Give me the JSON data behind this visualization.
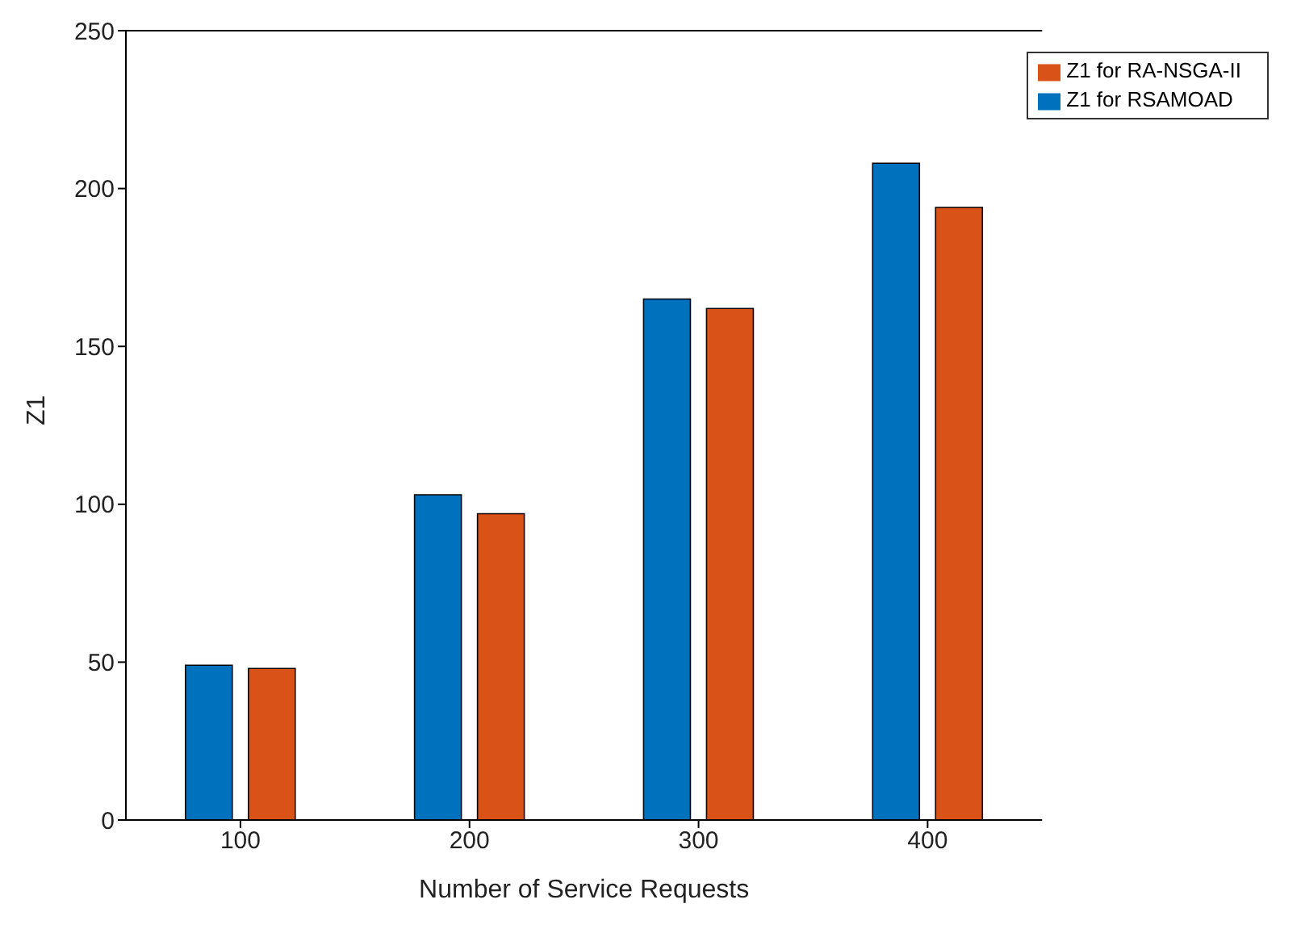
{
  "chart_data": {
    "type": "bar",
    "xlabel": "Number of Service Requests",
    "ylabel": "Z1",
    "categories": [
      "100",
      "200",
      "300",
      "400"
    ],
    "series": [
      {
        "name": "Z1 for RSAMOAD",
        "color": "#0072bd",
        "values": [
          49,
          103,
          165,
          208
        ]
      },
      {
        "name": "Z1 for RA-NSGA-II",
        "color": "#d95319",
        "values": [
          48,
          97,
          162,
          194
        ]
      }
    ],
    "ylim": [
      0,
      250
    ],
    "yticks": [
      0,
      50,
      100,
      150,
      200,
      250
    ],
    "grid": false,
    "legend": "top right"
  }
}
